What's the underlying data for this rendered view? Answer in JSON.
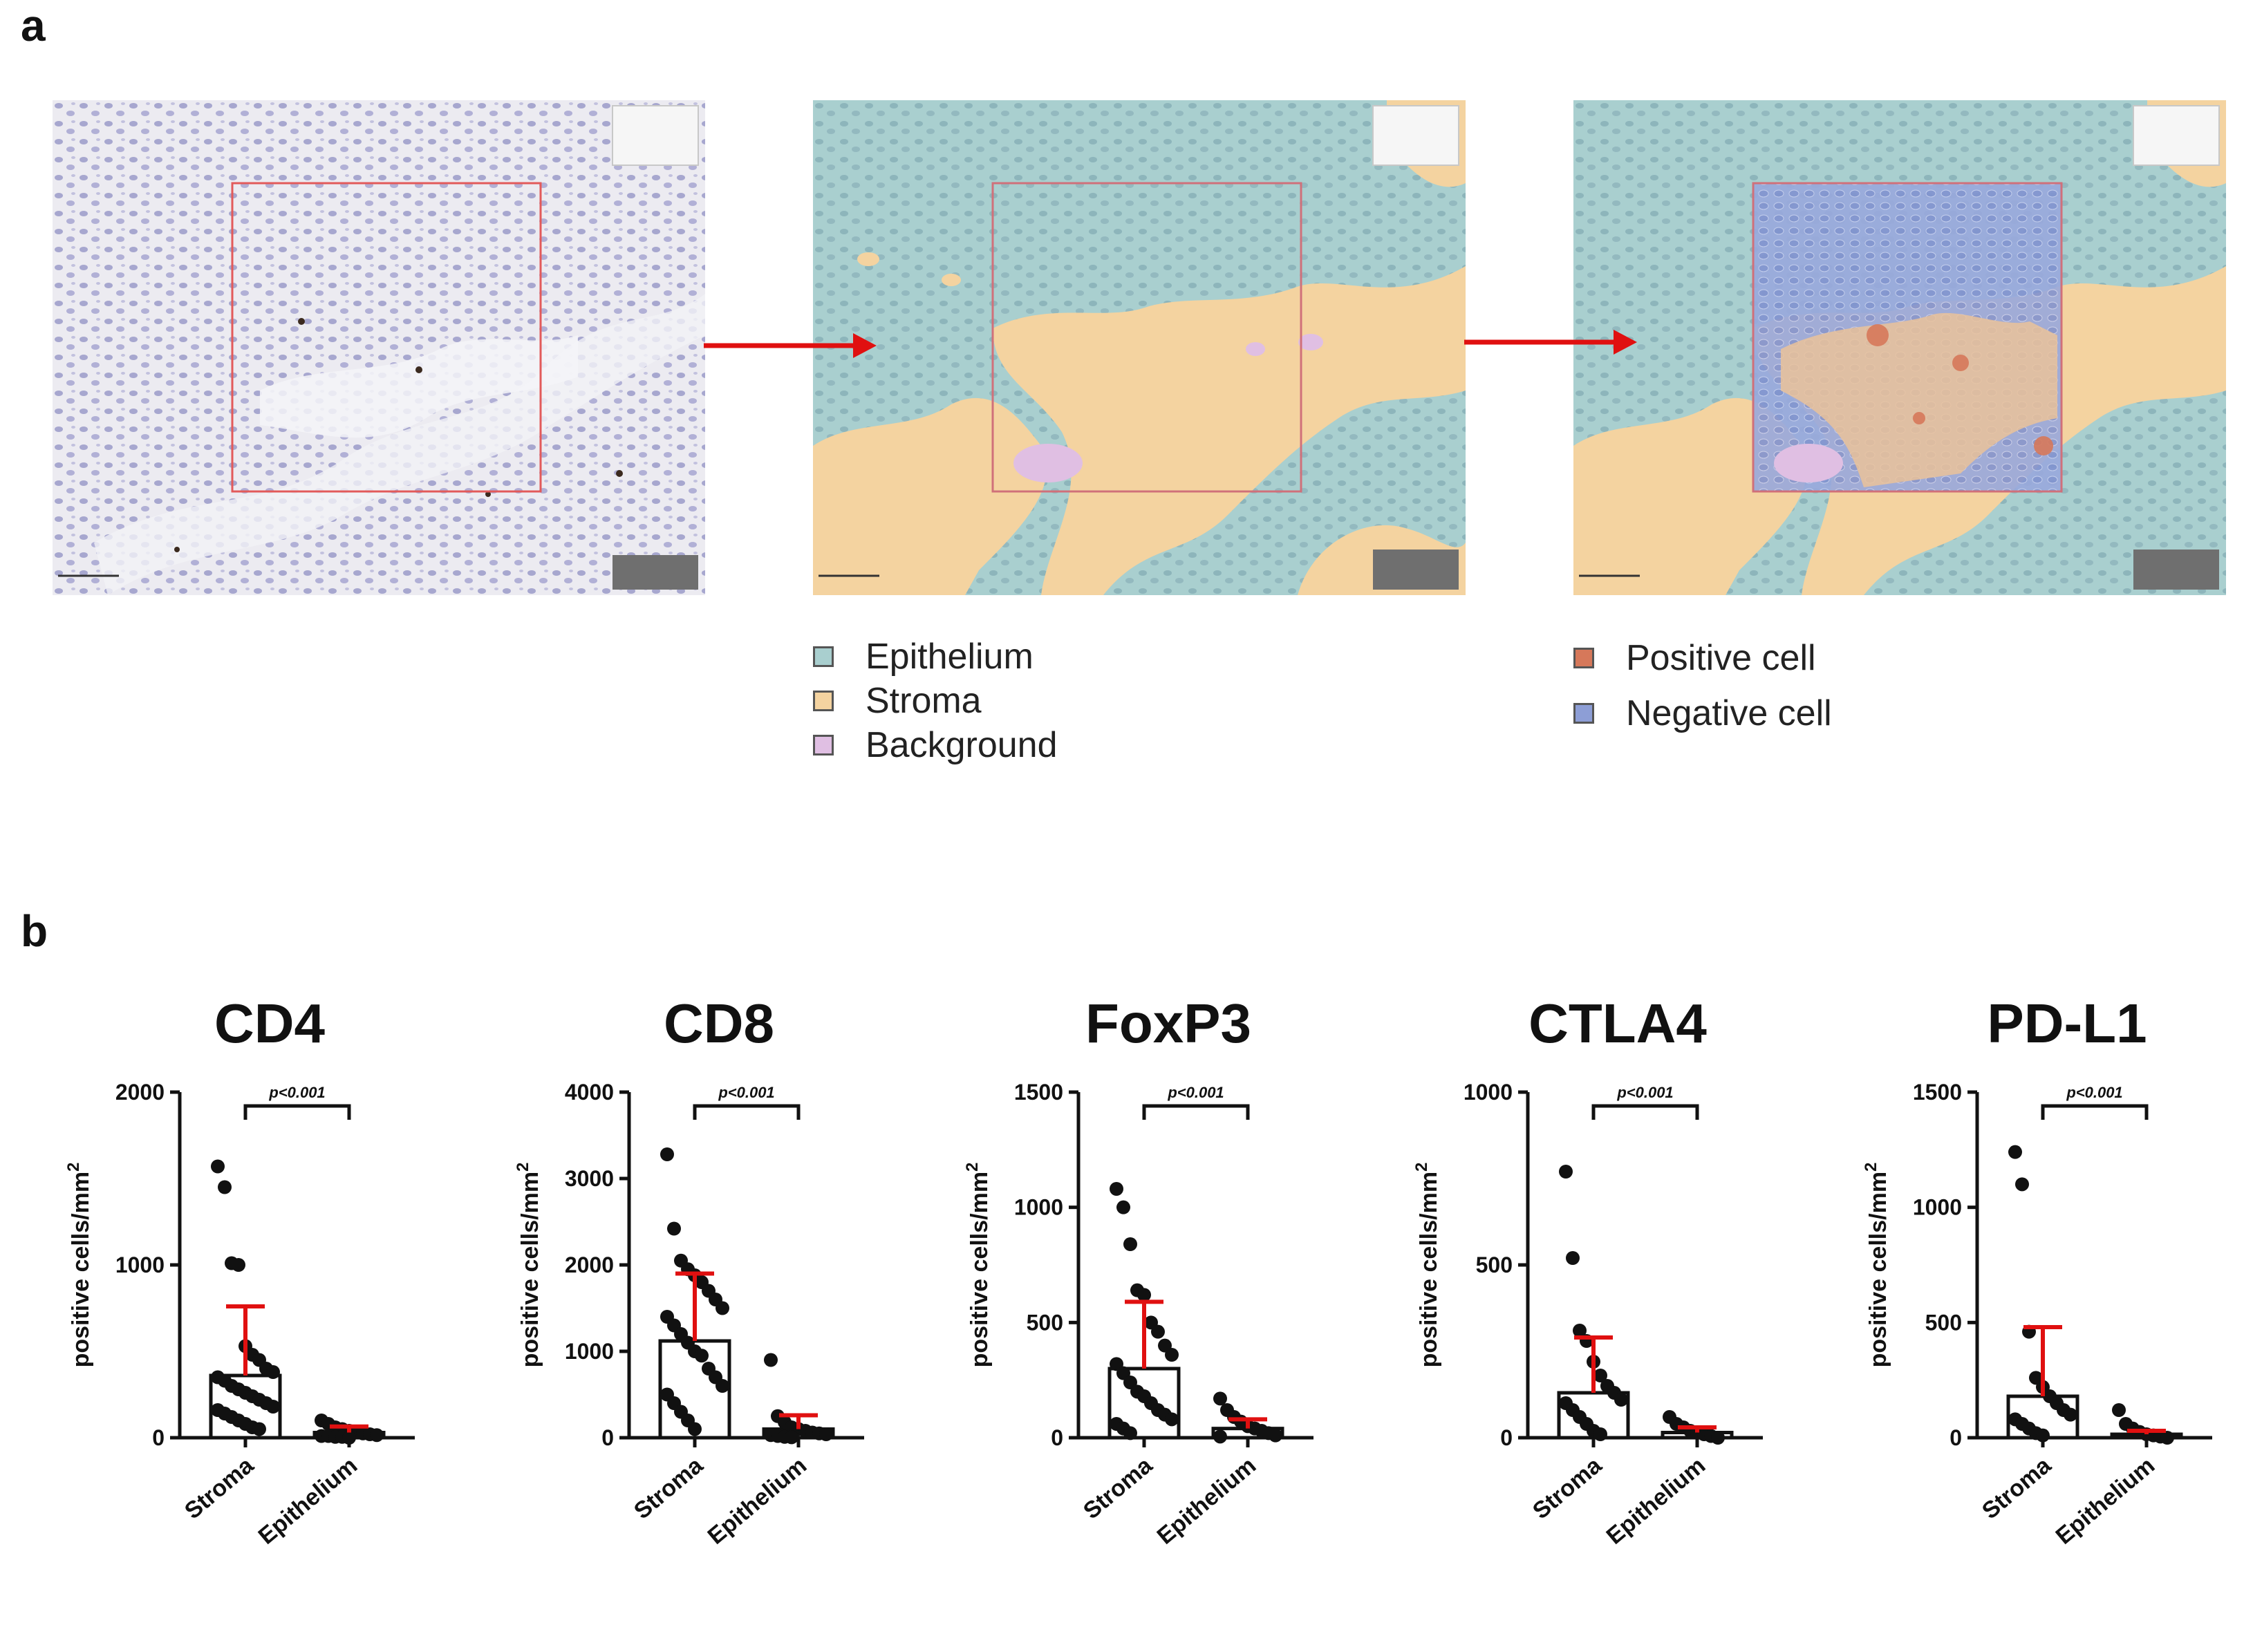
{
  "panel_labels": {
    "a": "a",
    "b": "b"
  },
  "panel_a": {
    "legend_tissue": [
      {
        "label": "Epithelium",
        "color": "#a9cfcf"
      },
      {
        "label": "Stroma",
        "color": "#f4d3a0"
      },
      {
        "label": "Background",
        "color": "#e0bfe3"
      }
    ],
    "legend_cells": [
      {
        "label": "Positive cell",
        "color": "#d6785a"
      },
      {
        "label": "Negative cell",
        "color": "#8d9ed6"
      }
    ],
    "arrow_color": "#e01010"
  },
  "colors": {
    "error_bar": "#e01010",
    "points": "#111111"
  },
  "chart_data": [
    {
      "type": "bar",
      "title": "CD4",
      "ylabel": "positive cells/mm2",
      "categories": [
        "Stroma",
        "Epithelium"
      ],
      "values": [
        360,
        30
      ],
      "sd_upper": [
        760,
        65
      ],
      "ylim": [
        0,
        2000
      ],
      "yticks": [
        0,
        1000,
        2000
      ],
      "significance": "p<0.001",
      "points": [
        [
          1570,
          1450,
          1010,
          1000,
          530,
          480,
          450,
          400,
          380,
          350,
          330,
          300,
          280,
          260,
          240,
          220,
          200,
          180,
          160,
          140,
          120,
          100,
          80,
          60,
          50
        ],
        [
          100,
          80,
          60,
          50,
          40,
          30,
          25,
          20,
          15,
          10,
          10,
          5,
          5,
          0
        ]
      ]
    },
    {
      "type": "bar",
      "title": "CD8",
      "ylabel": "positive cells/mm2",
      "categories": [
        "Stroma",
        "Epithelium"
      ],
      "values": [
        1120,
        100
      ],
      "sd_upper": [
        1900,
        260
      ],
      "ylim": [
        0,
        4000
      ],
      "yticks": [
        0,
        1000,
        2000,
        3000,
        4000
      ],
      "significance": "p<0.001",
      "points": [
        [
          3280,
          2420,
          2050,
          1950,
          1880,
          1800,
          1700,
          1600,
          1500,
          1400,
          1300,
          1200,
          1100,
          1000,
          950,
          800,
          700,
          600,
          500,
          400,
          300,
          200,
          100
        ],
        [
          900,
          250,
          180,
          120,
          100,
          80,
          60,
          50,
          40,
          30,
          20,
          10,
          5
        ]
      ]
    },
    {
      "type": "bar",
      "title": "FoxP3",
      "ylabel": "positive cells/mm2",
      "categories": [
        "Stroma",
        "Epithelium"
      ],
      "values": [
        300,
        40
      ],
      "sd_upper": [
        590,
        80
      ],
      "ylim": [
        0,
        1500
      ],
      "yticks": [
        0,
        500,
        1000,
        1500
      ],
      "significance": "p<0.001",
      "points": [
        [
          1080,
          1000,
          840,
          640,
          620,
          500,
          460,
          400,
          360,
          320,
          280,
          240,
          200,
          180,
          150,
          120,
          100,
          80,
          60,
          40,
          20
        ],
        [
          170,
          120,
          90,
          70,
          50,
          40,
          30,
          20,
          10,
          5
        ]
      ]
    },
    {
      "type": "bar",
      "title": "CTLA4",
      "ylabel": "positive cells/mm2",
      "categories": [
        "Stroma",
        "Epithelium"
      ],
      "values": [
        130,
        15
      ],
      "sd_upper": [
        290,
        30
      ],
      "ylim": [
        0,
        1000
      ],
      "yticks": [
        0,
        500,
        1000
      ],
      "significance": "p<0.001",
      "points": [
        [
          770,
          520,
          310,
          280,
          220,
          180,
          150,
          130,
          110,
          100,
          80,
          60,
          40,
          20,
          10
        ],
        [
          60,
          40,
          30,
          20,
          15,
          10,
          5,
          0
        ]
      ]
    },
    {
      "type": "bar",
      "title": "PD-L1",
      "ylabel": "positive cells/mm2",
      "categories": [
        "Stroma",
        "Epithelium"
      ],
      "values": [
        180,
        15
      ],
      "sd_upper": [
        480,
        30
      ],
      "ylim": [
        0,
        1500
      ],
      "yticks": [
        0,
        500,
        1000,
        1500
      ],
      "significance": "p<0.001",
      "points": [
        [
          1240,
          1100,
          460,
          260,
          220,
          180,
          150,
          120,
          100,
          80,
          60,
          40,
          20,
          10
        ],
        [
          120,
          60,
          40,
          25,
          15,
          10,
          5,
          0
        ]
      ]
    }
  ]
}
